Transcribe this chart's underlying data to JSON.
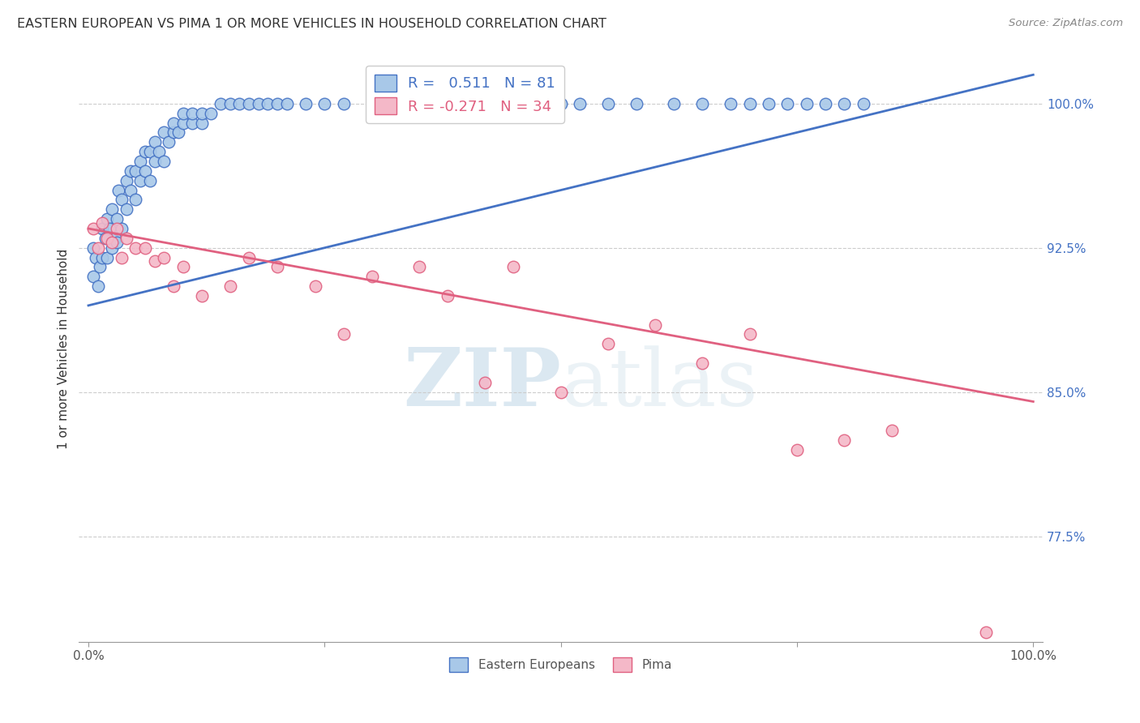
{
  "title": "EASTERN EUROPEAN VS PIMA 1 OR MORE VEHICLES IN HOUSEHOLD CORRELATION CHART",
  "source": "Source: ZipAtlas.com",
  "ylabel": "1 or more Vehicles in Household",
  "legend_blue_label": "Eastern Europeans",
  "legend_pink_label": "Pima",
  "blue_R": 0.511,
  "blue_N": 81,
  "pink_R": -0.271,
  "pink_N": 34,
  "xlim": [
    0.0,
    100.0
  ],
  "ylim": [
    72.0,
    102.5
  ],
  "yticks_labels": [
    "77.5%",
    "85.0%",
    "92.5%",
    "100.0%"
  ],
  "yticks_vals": [
    77.5,
    85.0,
    92.5,
    100.0
  ],
  "watermark": "ZIPatlas",
  "blue_color": "#A8C8E8",
  "pink_color": "#F4B8C8",
  "blue_line_color": "#4472C4",
  "pink_line_color": "#E06080",
  "blue_points_x": [
    0.5,
    0.5,
    0.8,
    1.0,
    1.2,
    1.5,
    1.5,
    1.8,
    2.0,
    2.0,
    2.2,
    2.5,
    2.5,
    2.8,
    3.0,
    3.0,
    3.2,
    3.5,
    3.5,
    4.0,
    4.0,
    4.5,
    4.5,
    5.0,
    5.0,
    5.5,
    5.5,
    6.0,
    6.0,
    6.5,
    6.5,
    7.0,
    7.0,
    7.5,
    8.0,
    8.0,
    8.5,
    9.0,
    9.0,
    9.5,
    10.0,
    10.0,
    11.0,
    11.0,
    12.0,
    12.0,
    13.0,
    14.0,
    15.0,
    16.0,
    17.0,
    18.0,
    19.0,
    20.0,
    21.0,
    23.0,
    25.0,
    27.0,
    30.0,
    32.0,
    35.0,
    38.0,
    40.0,
    42.0,
    44.0,
    46.0,
    48.0,
    50.0,
    52.0,
    55.0,
    58.0,
    62.0,
    65.0,
    68.0,
    70.0,
    72.0,
    74.0,
    76.0,
    78.0,
    80.0,
    82.0
  ],
  "blue_points_y": [
    92.5,
    91.0,
    92.0,
    90.5,
    91.5,
    92.0,
    93.5,
    93.0,
    92.0,
    94.0,
    93.5,
    92.5,
    94.5,
    93.0,
    94.0,
    92.8,
    95.5,
    93.5,
    95.0,
    94.5,
    96.0,
    95.5,
    96.5,
    95.0,
    96.5,
    96.0,
    97.0,
    96.5,
    97.5,
    96.0,
    97.5,
    97.0,
    98.0,
    97.5,
    97.0,
    98.5,
    98.0,
    98.5,
    99.0,
    98.5,
    99.0,
    99.5,
    99.0,
    99.5,
    99.0,
    99.5,
    99.5,
    100.0,
    100.0,
    100.0,
    100.0,
    100.0,
    100.0,
    100.0,
    100.0,
    100.0,
    100.0,
    100.0,
    100.0,
    100.0,
    100.0,
    100.0,
    100.0,
    100.0,
    100.0,
    100.0,
    100.0,
    100.0,
    100.0,
    100.0,
    100.0,
    100.0,
    100.0,
    100.0,
    100.0,
    100.0,
    100.0,
    100.0,
    100.0,
    100.0,
    100.0
  ],
  "pink_points_x": [
    0.5,
    1.0,
    1.5,
    2.0,
    2.5,
    3.0,
    3.5,
    4.0,
    5.0,
    6.0,
    7.0,
    8.0,
    9.0,
    10.0,
    12.0,
    15.0,
    17.0,
    20.0,
    24.0,
    27.0,
    30.0,
    35.0,
    38.0,
    42.0,
    45.0,
    50.0,
    55.0,
    60.0,
    65.0,
    70.0,
    75.0,
    80.0,
    85.0,
    95.0
  ],
  "pink_points_y": [
    93.5,
    92.5,
    93.8,
    93.0,
    92.8,
    93.5,
    92.0,
    93.0,
    92.5,
    92.5,
    91.8,
    92.0,
    90.5,
    91.5,
    90.0,
    90.5,
    92.0,
    91.5,
    90.5,
    88.0,
    91.0,
    91.5,
    90.0,
    85.5,
    91.5,
    85.0,
    87.5,
    88.5,
    86.5,
    88.0,
    82.0,
    82.5,
    83.0,
    72.5
  ],
  "blue_line_x": [
    0,
    100
  ],
  "blue_line_y": [
    89.5,
    101.5
  ],
  "pink_line_x": [
    0,
    100
  ],
  "pink_line_y": [
    93.5,
    84.5
  ]
}
